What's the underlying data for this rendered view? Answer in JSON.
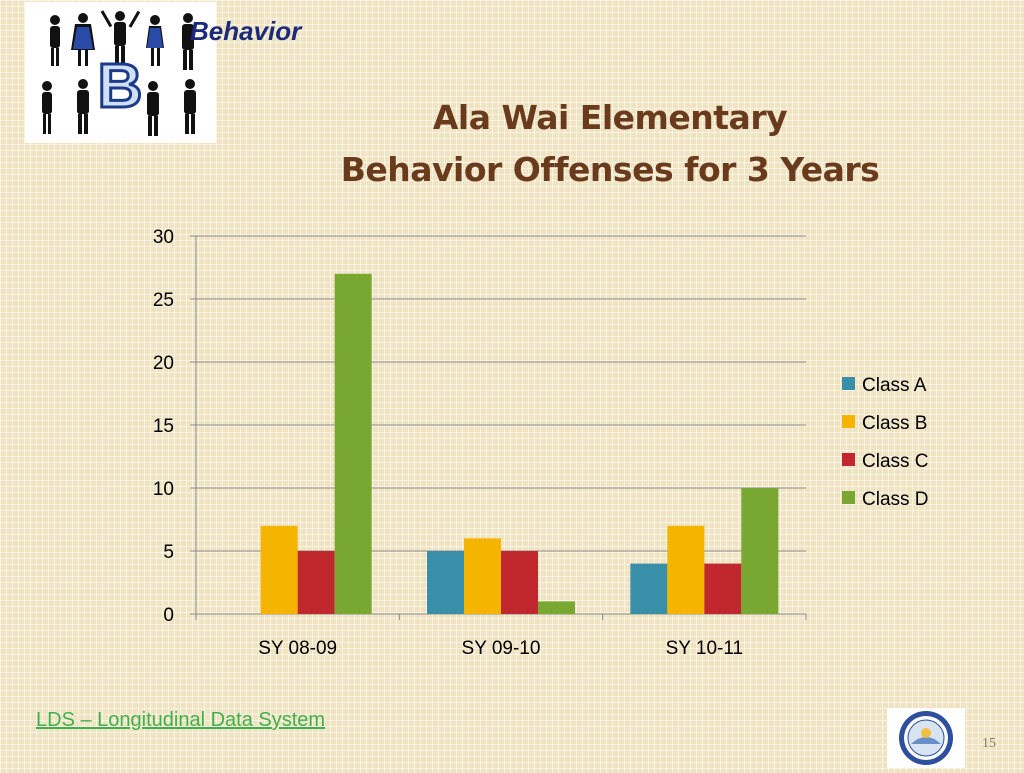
{
  "header": {
    "section_title": "Behavior",
    "logo_letter": "B",
    "title_line1": "Ala Wai Elementary",
    "title_line2": "Behavior Offenses for 3 Years"
  },
  "chart_data": {
    "type": "bar",
    "title": "Ala Wai Elementary Behavior Offenses for 3 Years",
    "categories": [
      "SY 08-09",
      "SY 09-10",
      "SY 10-11"
    ],
    "series": [
      {
        "name": "Class A",
        "color": "#3a8fa8",
        "values": [
          0,
          5,
          4
        ]
      },
      {
        "name": "Class B",
        "color": "#f5b400",
        "values": [
          7,
          6,
          7
        ]
      },
      {
        "name": "Class C",
        "color": "#c0282e",
        "values": [
          5,
          5,
          4
        ]
      },
      {
        "name": "Class D",
        "color": "#78a832",
        "values": [
          27,
          1,
          10
        ]
      }
    ],
    "ylim": [
      0,
      30
    ],
    "yticks": [
      0,
      5,
      10,
      15,
      20,
      25,
      30
    ],
    "grid": true,
    "legend_position": "right"
  },
  "footer": {
    "link_text": "LDS – Longitudinal Data System",
    "page_number": "15"
  }
}
